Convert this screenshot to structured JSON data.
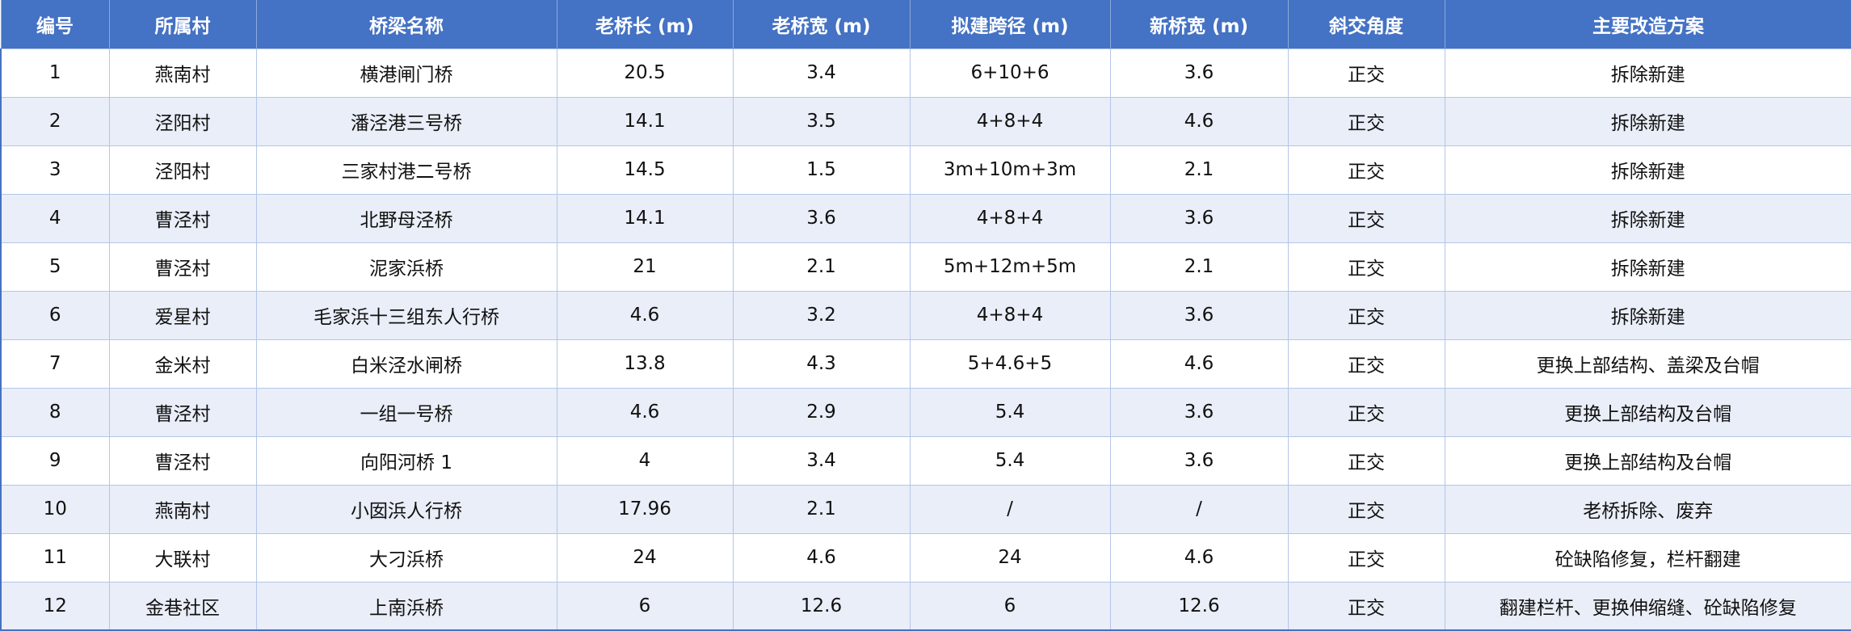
{
  "colors": {
    "header_bg": "#4472C4",
    "header_text": "#FFFFFF",
    "row_alt_bg": "#E9EEF8",
    "grid": "#B4C6E7"
  },
  "table": {
    "headers": [
      "编号",
      "所属村",
      "桥梁名称",
      "老桥长 (m)",
      "老桥宽 (m)",
      "拟建跨径 (m)",
      "新桥宽 (m)",
      "斜交角度",
      "主要改造方案"
    ],
    "rows": [
      [
        "1",
        "燕南村",
        "横港闸门桥",
        "20.5",
        "3.4",
        "6+10+6",
        "3.6",
        "正交",
        "拆除新建"
      ],
      [
        "2",
        "泾阳村",
        "潘泾港三号桥",
        "14.1",
        "3.5",
        "4+8+4",
        "4.6",
        "正交",
        "拆除新建"
      ],
      [
        "3",
        "泾阳村",
        "三家村港二号桥",
        "14.5",
        "1.5",
        "3m+10m+3m",
        "2.1",
        "正交",
        "拆除新建"
      ],
      [
        "4",
        "曹泾村",
        "北野母泾桥",
        "14.1",
        "3.6",
        "4+8+4",
        "3.6",
        "正交",
        "拆除新建"
      ],
      [
        "5",
        "曹泾村",
        "泥家浜桥",
        "21",
        "2.1",
        "5m+12m+5m",
        "2.1",
        "正交",
        "拆除新建"
      ],
      [
        "6",
        "爱星村",
        "毛家浜十三组东人行桥",
        "4.6",
        "3.2",
        "4+8+4",
        "3.6",
        "正交",
        "拆除新建"
      ],
      [
        "7",
        "金米村",
        "白米泾水闸桥",
        "13.8",
        "4.3",
        "5+4.6+5",
        "4.6",
        "正交",
        "更换上部结构、盖梁及台帽"
      ],
      [
        "8",
        "曹泾村",
        "一组一号桥",
        "4.6",
        "2.9",
        "5.4",
        "3.6",
        "正交",
        "更换上部结构及台帽"
      ],
      [
        "9",
        "曹泾村",
        "向阳河桥 1",
        "4",
        "3.4",
        "5.4",
        "3.6",
        "正交",
        "更换上部结构及台帽"
      ],
      [
        "10",
        "燕南村",
        "小囡浜人行桥",
        "17.96",
        "2.1",
        "/",
        "/",
        "正交",
        "老桥拆除、废弃"
      ],
      [
        "11",
        "大联村",
        "大刁浜桥",
        "24",
        "4.6",
        "24",
        "4.6",
        "正交",
        "砼缺陷修复，栏杆翻建"
      ],
      [
        "12",
        "金巷社区",
        "上南浜桥",
        "6",
        "12.6",
        "6",
        "12.6",
        "正交",
        "翻建栏杆、更换伸缩缝、砼缺陷修复"
      ]
    ]
  }
}
